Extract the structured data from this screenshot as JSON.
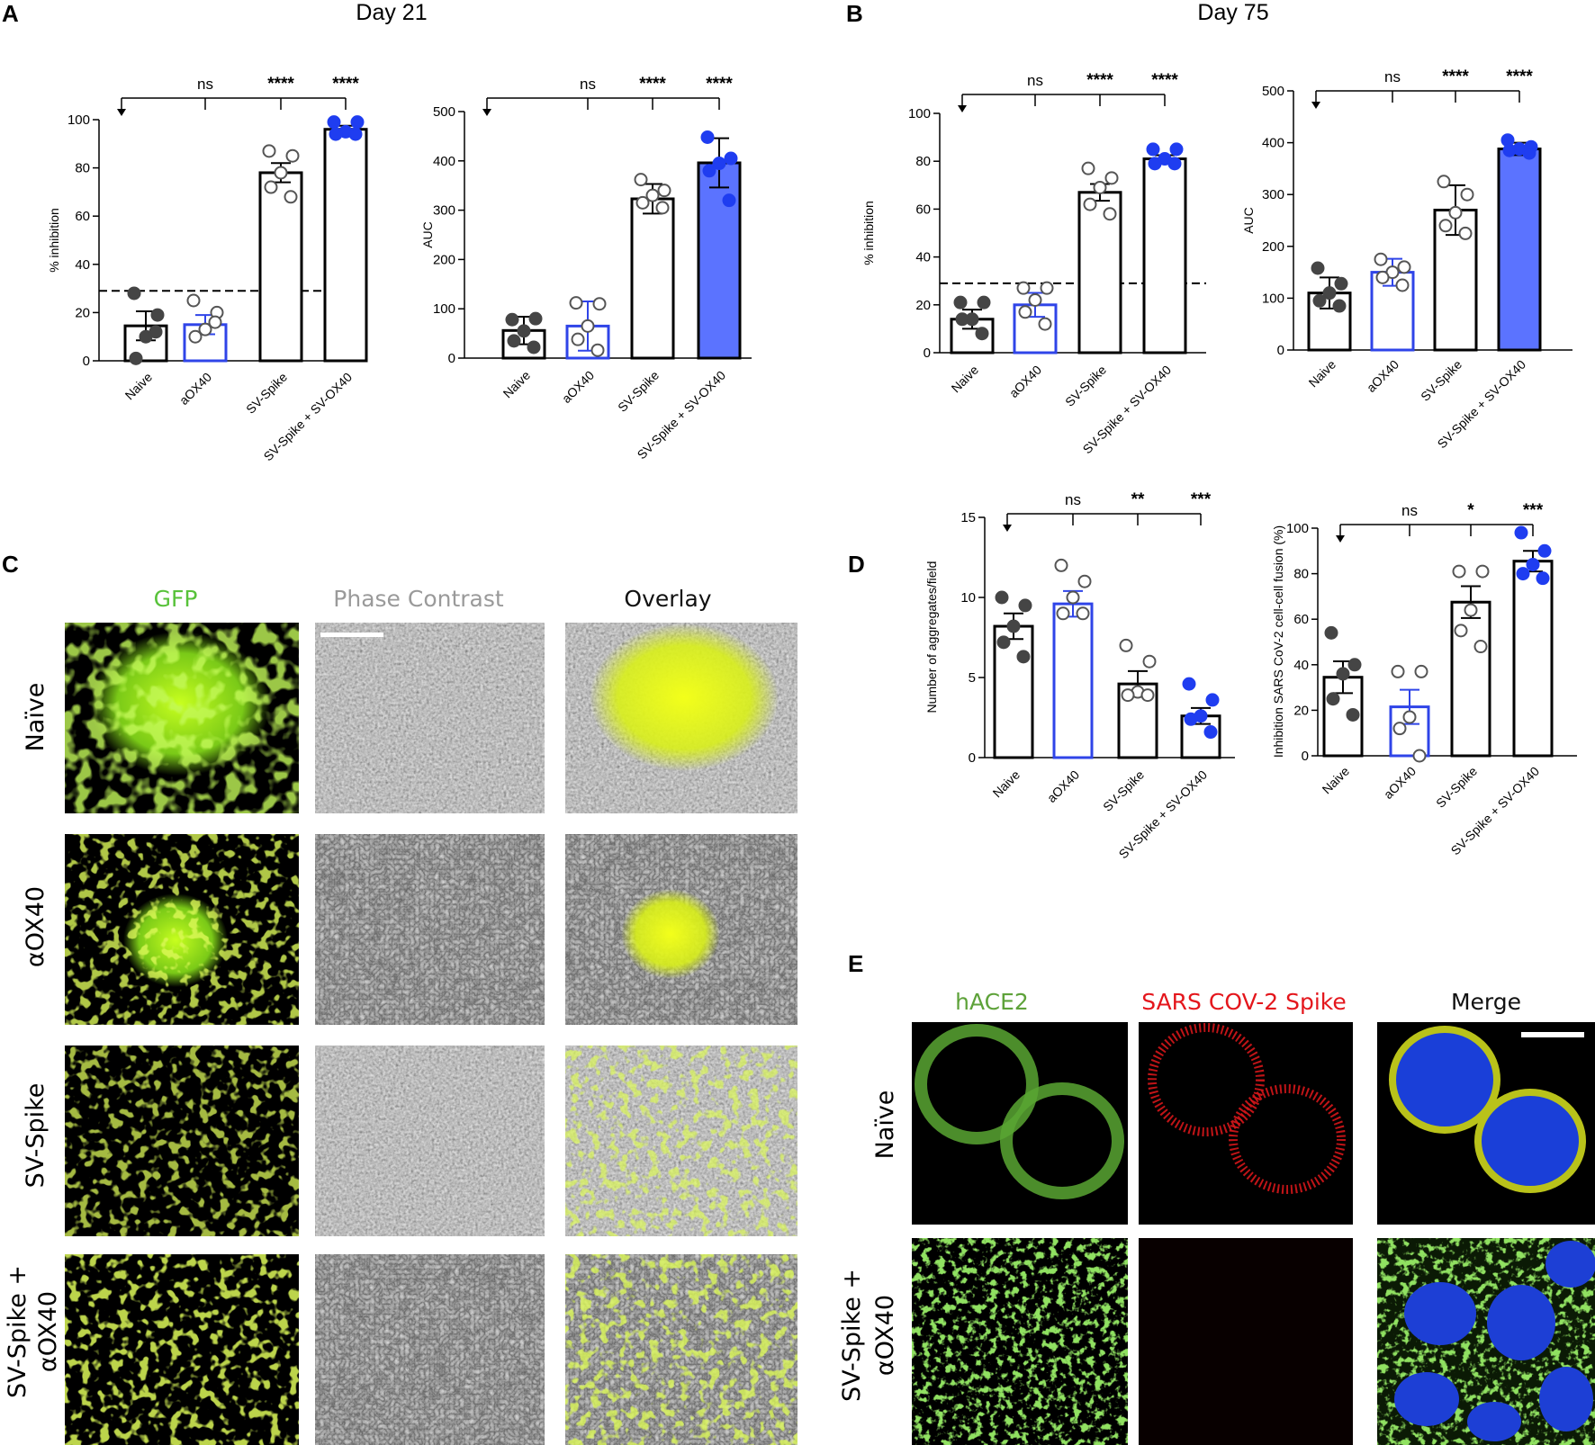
{
  "colors": {
    "aox40_outline": "#2f44e8",
    "combo_fill": "#5b73ff",
    "blue_point": "#1f3df0",
    "dark_point": "#454545",
    "gfp_header": "#58c23a",
    "phase_header": "#9a9a9a",
    "hace2_header": "#5ea23a",
    "spike_header": "#e4161c"
  },
  "categories": [
    "Naive",
    "aOX40",
    "SV-Spike",
    "SV-Spike + SV-OX40"
  ],
  "significance": {
    "A_inhibition": [
      "ns",
      "****",
      "****"
    ],
    "A_auc": [
      "ns",
      "****",
      "****"
    ],
    "B_inhibition": [
      "ns",
      "****",
      "****"
    ],
    "B_auc": [
      "ns",
      "****",
      "****"
    ],
    "D_aggregates": [
      "ns",
      "**",
      "***"
    ],
    "D_fusion": [
      "ns",
      "*",
      "***"
    ]
  },
  "panels": {
    "A": {
      "label": "A",
      "title": "Day 21"
    },
    "B": {
      "label": "B",
      "title": "Day 75"
    },
    "C": {
      "label": "C",
      "columns": [
        "GFP",
        "Phase Contrast",
        "Overlay"
      ],
      "rows": [
        "Naïve",
        "αOX40",
        "SV-Spike",
        "SV-Spike +",
        "αOX40"
      ]
    },
    "D": {
      "label": "D"
    },
    "E": {
      "label": "E",
      "columns": [
        "hACE2",
        "SARS COV-2 Spike",
        "Merge"
      ],
      "rows": [
        "Naïve",
        "SV-Spike +",
        "αOX40"
      ]
    }
  },
  "chart_data": [
    {
      "id": "A-inhibition",
      "type": "bar",
      "panel": "A",
      "categories": [
        "Naive",
        "aOX40",
        "SV-Spike",
        "SV-Spike + SV-OX40"
      ],
      "ylabel": "% inhibition",
      "ylim": [
        0,
        100
      ],
      "yticks": [
        0,
        20,
        40,
        60,
        80,
        100
      ],
      "values": [
        14.5,
        15,
        78,
        96
      ],
      "errors": [
        6,
        4,
        4,
        1.5
      ],
      "points": [
        [
          28,
          19,
          10,
          1,
          12
        ],
        [
          25,
          20,
          13,
          10,
          16
        ],
        [
          87,
          85,
          78,
          72,
          68
        ],
        [
          99,
          99,
          95,
          94,
          94
        ]
      ],
      "reference_line": 29
    },
    {
      "id": "A-auc",
      "type": "bar",
      "panel": "A",
      "categories": [
        "Naive",
        "aOX40",
        "SV-Spike",
        "SV-Spike + SV-OX40"
      ],
      "ylabel": "AUC",
      "ylim": [
        0,
        500
      ],
      "yticks": [
        0,
        100,
        200,
        300,
        400,
        500
      ],
      "values": [
        56,
        65,
        323,
        396
      ],
      "errors": [
        28,
        50,
        30,
        50
      ],
      "points": [
        [
          78,
          80,
          55,
          35,
          22
        ],
        [
          112,
          110,
          65,
          38,
          16
        ],
        [
          362,
          340,
          330,
          315,
          305
        ],
        [
          448,
          405,
          395,
          380,
          320
        ]
      ]
    },
    {
      "id": "B-inhibition",
      "type": "bar",
      "panel": "B",
      "categories": [
        "Naive",
        "aOX40",
        "SV-Spike",
        "SV-Spike + SV-OX40"
      ],
      "ylabel": "% inhibition",
      "ylim": [
        0,
        100
      ],
      "yticks": [
        0,
        20,
        40,
        60,
        80,
        100
      ],
      "values": [
        14,
        20,
        67,
        81
      ],
      "errors": [
        4,
        5,
        3.5,
        1.5
      ],
      "points": [
        [
          21,
          21,
          14,
          14,
          8
        ],
        [
          27,
          27,
          22,
          17,
          12
        ],
        [
          77,
          73,
          69,
          62,
          58
        ],
        [
          85,
          85,
          81,
          79,
          79
        ]
      ],
      "reference_line": 29
    },
    {
      "id": "B-auc",
      "type": "bar",
      "panel": "B",
      "categories": [
        "Naive",
        "aOX40",
        "SV-Spike",
        "SV-Spike + SV-OX40"
      ],
      "ylabel": "AUC",
      "ylim": [
        0,
        500
      ],
      "yticks": [
        0,
        100,
        200,
        300,
        400,
        500
      ],
      "values": [
        110,
        150,
        270,
        388
      ],
      "errors": [
        30,
        26,
        48,
        12
      ],
      "points": [
        [
          158,
          128,
          110,
          95,
          85
        ],
        [
          175,
          160,
          150,
          140,
          125
        ],
        [
          325,
          300,
          265,
          240,
          225
        ],
        [
          405,
          392,
          388,
          385,
          380
        ]
      ]
    },
    {
      "id": "D-aggregates",
      "type": "bar",
      "panel": "D",
      "categories": [
        "Naive",
        "aOX40",
        "SV-Spike",
        "SV-Spike + SV-OX40"
      ],
      "ylabel": "Number of aggregates/field",
      "ylim": [
        0,
        15
      ],
      "yticks": [
        0,
        5,
        10,
        15
      ],
      "values": [
        8.2,
        9.6,
        4.6,
        2.6
      ],
      "errors": [
        0.8,
        0.8,
        0.8,
        0.5
      ],
      "points": [
        [
          10,
          9.5,
          8.2,
          7.2,
          6.3
        ],
        [
          12,
          11,
          10,
          9,
          9
        ],
        [
          7,
          6,
          4.1,
          3.9,
          3.9
        ],
        [
          4.6,
          3.6,
          2.6,
          2.4,
          1.6
        ]
      ]
    },
    {
      "id": "D-fusion",
      "type": "bar",
      "panel": "D",
      "categories": [
        "Naive",
        "aOX40",
        "SV-Spike",
        "SV-Spike + SV-OX40"
      ],
      "ylabel": "Inhibition SARS CoV-2 cell-cell fusion (%)",
      "ylim": [
        0,
        100
      ],
      "yticks": [
        0,
        20,
        40,
        60,
        80,
        100
      ],
      "values": [
        34.5,
        21.5,
        67.5,
        85.5
      ],
      "errors": [
        7,
        7.5,
        7,
        4.5
      ],
      "points": [
        [
          54,
          40,
          36,
          25,
          18
        ],
        [
          37,
          37,
          17,
          12,
          0
        ],
        [
          81,
          81,
          64,
          55,
          48
        ],
        [
          98,
          90,
          84,
          80,
          78
        ]
      ]
    }
  ]
}
